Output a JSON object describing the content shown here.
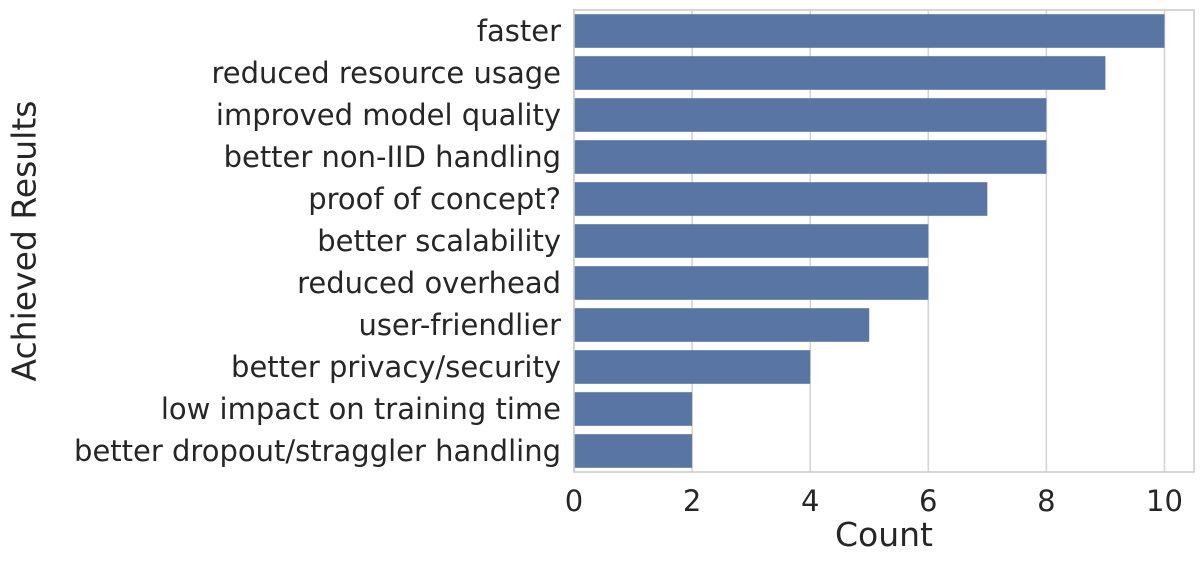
{
  "chart_data": {
    "type": "bar",
    "orientation": "horizontal",
    "categories": [
      "faster",
      "reduced resource usage",
      "improved model quality",
      "better non-IID handling",
      "proof of concept?",
      "better scalability",
      "reduced overhead",
      "user-friendlier",
      "better privacy/security",
      "low impact on training time",
      "better dropout/straggler handling"
    ],
    "values": [
      10,
      9,
      8,
      8,
      7,
      6,
      6,
      5,
      4,
      2,
      2
    ],
    "xlabel": "Count",
    "ylabel": "Achieved Results",
    "xlim": [
      0,
      10.5
    ],
    "xticks": [
      0,
      2,
      4,
      6,
      8,
      10
    ],
    "grid": true,
    "colors": {
      "bar": "#5875a4",
      "grid": "#d4d4d4",
      "frame": "#cccccc",
      "text": "#262626"
    }
  }
}
